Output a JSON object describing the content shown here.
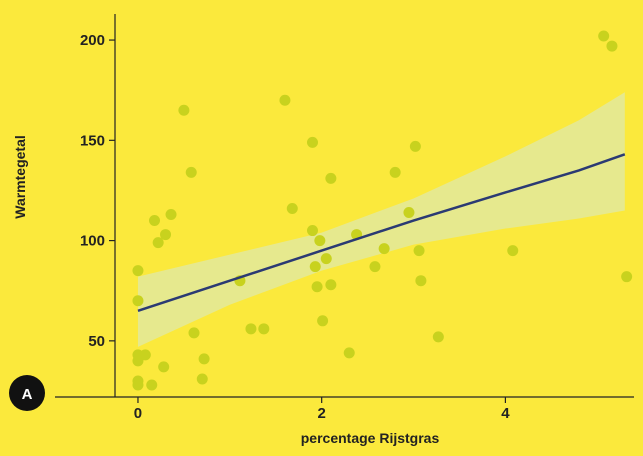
{
  "colors": {
    "background": "#fbe93c",
    "point": "#c8d21e",
    "band": "#e6e98e",
    "trend": "#2b3a73",
    "axis": "#222222",
    "badge": "#111111"
  },
  "badge": {
    "label": "A"
  },
  "chart_data": {
    "type": "scatter",
    "xlabel": "percentage Rijstgras",
    "ylabel": "Warmtegetal",
    "xlim": [
      -0.25,
      5.4
    ],
    "ylim": [
      22,
      211
    ],
    "xticks": [
      {
        "value": 0,
        "label": "0"
      },
      {
        "value": 2,
        "label": "2"
      },
      {
        "value": 4,
        "label": "4"
      }
    ],
    "yticks": [
      {
        "value": 50,
        "label": "50"
      },
      {
        "value": 100,
        "label": "100"
      },
      {
        "value": 150,
        "label": "150"
      },
      {
        "value": 200,
        "label": "200"
      }
    ],
    "grid": false,
    "points": [
      {
        "x": 0.0,
        "y": 85
      },
      {
        "x": 0.0,
        "y": 70
      },
      {
        "x": 0.0,
        "y": 43
      },
      {
        "x": 0.0,
        "y": 40
      },
      {
        "x": 0.0,
        "y": 30
      },
      {
        "x": 0.0,
        "y": 28
      },
      {
        "x": 0.08,
        "y": 43
      },
      {
        "x": 0.15,
        "y": 28
      },
      {
        "x": 0.18,
        "y": 110
      },
      {
        "x": 0.22,
        "y": 99
      },
      {
        "x": 0.28,
        "y": 37
      },
      {
        "x": 0.3,
        "y": 103
      },
      {
        "x": 0.36,
        "y": 113
      },
      {
        "x": 0.5,
        "y": 165
      },
      {
        "x": 0.58,
        "y": 134
      },
      {
        "x": 0.61,
        "y": 54
      },
      {
        "x": 0.7,
        "y": 31
      },
      {
        "x": 0.72,
        "y": 41
      },
      {
        "x": 1.11,
        "y": 80
      },
      {
        "x": 1.23,
        "y": 56
      },
      {
        "x": 1.37,
        "y": 56
      },
      {
        "x": 1.6,
        "y": 170
      },
      {
        "x": 1.68,
        "y": 116
      },
      {
        "x": 1.9,
        "y": 149
      },
      {
        "x": 1.9,
        "y": 105
      },
      {
        "x": 1.93,
        "y": 87
      },
      {
        "x": 1.95,
        "y": 77
      },
      {
        "x": 1.98,
        "y": 100
      },
      {
        "x": 2.01,
        "y": 60
      },
      {
        "x": 2.05,
        "y": 91
      },
      {
        "x": 2.1,
        "y": 131
      },
      {
        "x": 2.1,
        "y": 78
      },
      {
        "x": 2.3,
        "y": 44
      },
      {
        "x": 2.38,
        "y": 103
      },
      {
        "x": 2.58,
        "y": 87
      },
      {
        "x": 2.68,
        "y": 96
      },
      {
        "x": 2.8,
        "y": 134
      },
      {
        "x": 2.95,
        "y": 114
      },
      {
        "x": 3.02,
        "y": 147
      },
      {
        "x": 3.06,
        "y": 95
      },
      {
        "x": 3.08,
        "y": 80
      },
      {
        "x": 3.27,
        "y": 52
      },
      {
        "x": 4.08,
        "y": 95
      },
      {
        "x": 5.07,
        "y": 202
      },
      {
        "x": 5.16,
        "y": 197
      },
      {
        "x": 5.32,
        "y": 82
      }
    ],
    "trend_line": {
      "x": [
        0,
        1,
        2,
        3,
        4,
        4.8,
        5.3
      ],
      "y": [
        65,
        80,
        95,
        110,
        124,
        135,
        143
      ]
    },
    "confidence_band": {
      "x": [
        0,
        1,
        2,
        3,
        4,
        4.8,
        5.3
      ],
      "lower": [
        47,
        68,
        85,
        98,
        106,
        111,
        115
      ],
      "upper": [
        82,
        93,
        104,
        121,
        142,
        160,
        174
      ]
    }
  }
}
